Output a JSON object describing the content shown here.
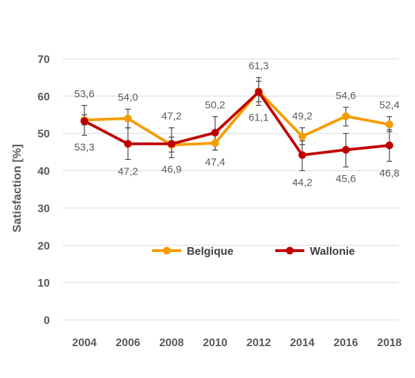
{
  "chart_data": {
    "type": "line",
    "ylabel": "Satisfaction [%]",
    "xlabel": "",
    "ylim": [
      0,
      70
    ],
    "yticks": [
      "0",
      "10",
      "20",
      "30",
      "40",
      "50",
      "60",
      "70"
    ],
    "categories": [
      "2004",
      "2006",
      "2008",
      "2010",
      "2012",
      "2014",
      "2016",
      "2018"
    ],
    "grid": "horizontal",
    "legend_position": "center",
    "series": [
      {
        "name": "Belgique",
        "color": "#F59C00",
        "values": [
          53.6,
          54.0,
          46.9,
          47.4,
          61.3,
          49.2,
          54.6,
          52.4
        ],
        "labels": [
          "53,6",
          "54,0",
          "46,9",
          "47,4",
          "61,3",
          "49,2",
          "54,6",
          "52,4"
        ],
        "error": [
          [
            52.3,
            55.0
          ],
          [
            51.5,
            56.5
          ],
          [
            45.0,
            49.0
          ],
          [
            45.5,
            49.5
          ],
          [
            58.5,
            64.0
          ],
          [
            47.0,
            51.5
          ],
          [
            52.0,
            57.0
          ],
          [
            50.5,
            54.5
          ]
        ]
      },
      {
        "name": "Wallonie",
        "color": "#C00000",
        "values": [
          53.3,
          47.2,
          47.2,
          50.2,
          61.1,
          44.2,
          45.6,
          46.8
        ],
        "labels": [
          "53,3",
          "47,2",
          "47,2",
          "50,2",
          "61,1",
          "44,2",
          "45,6",
          "46,8"
        ],
        "error": [
          [
            49.5,
            57.5
          ],
          [
            43.0,
            51.5
          ],
          [
            43.5,
            51.5
          ],
          [
            45.5,
            54.5
          ],
          [
            57.5,
            65.0
          ],
          [
            40.0,
            48.0
          ],
          [
            41.0,
            50.0
          ],
          [
            42.5,
            51.0
          ]
        ]
      }
    ]
  }
}
